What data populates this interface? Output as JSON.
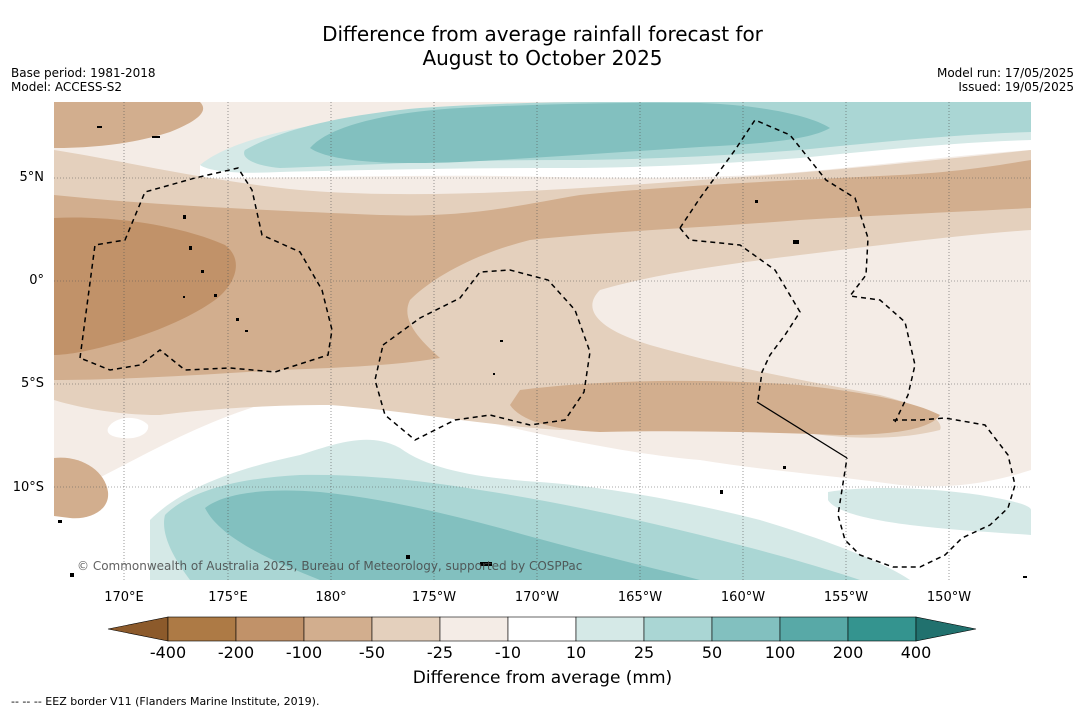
{
  "title_line1": "Difference from average rainfall forecast for",
  "title_line2": "August to October 2025",
  "meta_left": {
    "base_period": "Base period: 1981-2018",
    "model": "Model: ACCESS-S2"
  },
  "meta_right": {
    "model_run": "Model run: 17/05/2025",
    "issued": "Issued: 19/05/2025"
  },
  "lat_ticks": [
    "5°N",
    "0°",
    "5°S",
    "10°S"
  ],
  "lon_ticks": [
    "170°E",
    "175°E",
    "180°",
    "175°W",
    "170°W",
    "165°W",
    "160°W",
    "155°W",
    "150°W"
  ],
  "copyright": "© Commonwealth of Australia 2025, Bureau of Meteorology, supported by COSPPac",
  "colorbar": {
    "title": "Difference from average (mm)",
    "labels": [
      "-400",
      "-200",
      "-100",
      "-50",
      "-25",
      "-10",
      "10",
      "25",
      "50",
      "100",
      "200",
      "400"
    ],
    "colors": [
      "#8c5a2b",
      "#ad7a45",
      "#c19269",
      "#d2ae8e",
      "#e4d0bd",
      "#f4ece6",
      "#ffffff",
      "#d5e9e7",
      "#aad6d4",
      "#82c0bf",
      "#58a9a7",
      "#34948f",
      "#21716e"
    ]
  },
  "footnote": "-- -- -- EEZ border V11 (Flanders Marine Institute, 2019)."
}
